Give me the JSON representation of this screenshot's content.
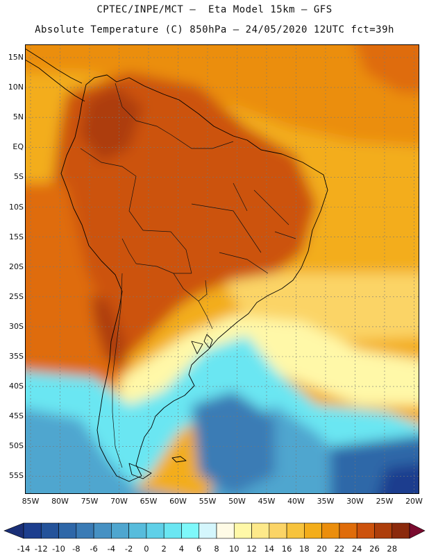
{
  "header": {
    "line1": "CPTEC/INPE/MCT –  Eta Model 15km – GFS",
    "line2": "Absolute Temperature (C) 850hPa – 24/05/2020 12UTC fct=39h"
  },
  "map": {
    "lat_labels": [
      "15N",
      "10N",
      "5N",
      "EQ",
      "5S",
      "10S",
      "15S",
      "20S",
      "25S",
      "30S",
      "35S",
      "40S",
      "45S",
      "50S",
      "55S"
    ],
    "lon_labels": [
      "85W",
      "80W",
      "75W",
      "70W",
      "65W",
      "60W",
      "55W",
      "50W",
      "45W",
      "40W",
      "35W",
      "30W",
      "25W",
      "20W"
    ],
    "extent": {
      "lon_min": -86,
      "lon_max": -19,
      "lat_min": -58,
      "lat_max": 17
    },
    "grid": true,
    "coastline_color": "#000000"
  },
  "colorbar": {
    "labels": [
      "-14",
      "-12",
      "-10",
      "-8",
      "-6",
      "-4",
      "-2",
      "0",
      "2",
      "4",
      "6",
      "8",
      "10",
      "12",
      "14",
      "16",
      "18",
      "20",
      "22",
      "24",
      "26",
      "28"
    ],
    "colors": [
      "#1c3e8e",
      "#24539a",
      "#2e67a8",
      "#3a7bb5",
      "#4691c3",
      "#4fa6cf",
      "#57bcdc",
      "#5fd0e8",
      "#6ae6f2",
      "#7ef8fa",
      "#d4f6fc",
      "#fffbe6",
      "#fff8a8",
      "#fde98a",
      "#fbd466",
      "#f7c33c",
      "#f3ad1a",
      "#eb8e0c",
      "#df6c0a",
      "#cc520c",
      "#ad3e0b",
      "#8b2a0c"
    ],
    "under_color": "#1a2f77",
    "over_color": "#7a0a2e"
  },
  "colors": {
    "hot": "#c4500e",
    "warm": "#f3ad1a",
    "mild": "#fde98a",
    "cool": "#6ae6f2",
    "cold": "#3a7bb5"
  }
}
